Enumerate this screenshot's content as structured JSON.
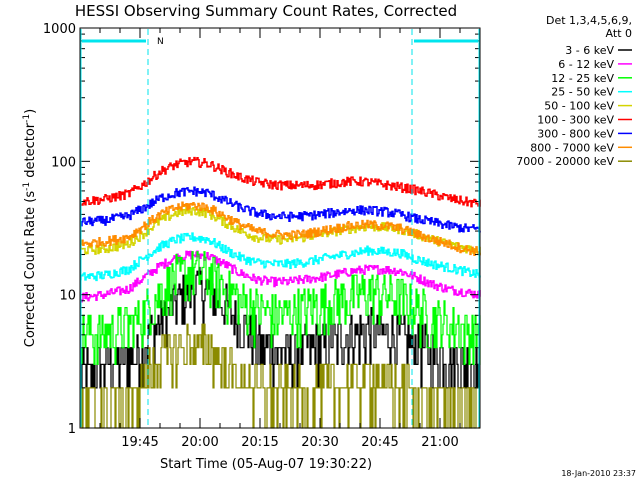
{
  "chart_data": {
    "type": "line",
    "title": "HESSI Observing Summary Count Rates, Corrected",
    "xlabel": "Start Time (05-Aug-07 19:30:22)",
    "ylabel_main": "Corrected Count Rate (s",
    "ylabel_sup1": "-1",
    "ylabel_mid": " detector",
    "ylabel_sup2": "-1",
    "ylabel_end": ")",
    "yscale": "log",
    "ylim": [
      1,
      1000
    ],
    "xlim_minutes": [
      0,
      100
    ],
    "yticks": [
      {
        "v": 1,
        "label": "1"
      },
      {
        "v": 10,
        "label": "10"
      },
      {
        "v": 100,
        "label": "100"
      },
      {
        "v": 1000,
        "label": "1000"
      }
    ],
    "xticks": [
      {
        "m": 15,
        "label": "19:45"
      },
      {
        "m": 30,
        "label": "20:00"
      },
      {
        "m": 45,
        "label": "20:15"
      },
      {
        "m": 60,
        "label": "20:30"
      },
      {
        "m": 75,
        "label": "20:45"
      },
      {
        "m": 90,
        "label": "21:00"
      }
    ],
    "legend_header": [
      "Det 1,3,4,5,6,9,",
      "Att 0"
    ],
    "footer_date": "18-Jan-2010 23:37",
    "night_label": "N",
    "night_color": "#00e5ee",
    "night_intervals": [
      [
        0,
        17
      ],
      [
        83,
        100
      ]
    ],
    "series": [
      {
        "name": "3 - 6 keV",
        "color": "#000000",
        "points": [
          [
            0,
            2.5
          ],
          [
            6,
            2.9
          ],
          [
            12,
            3.3
          ],
          [
            16,
            4.3
          ],
          [
            20,
            6.0
          ],
          [
            24,
            9.0
          ],
          [
            28,
            11.5
          ],
          [
            32,
            11.0
          ],
          [
            36,
            8.5
          ],
          [
            40,
            6.0
          ],
          [
            44,
            4.5
          ],
          [
            48,
            3.8
          ],
          [
            52,
            3.7
          ],
          [
            56,
            3.9
          ],
          [
            60,
            4.2
          ],
          [
            64,
            4.6
          ],
          [
            68,
            5.0
          ],
          [
            72,
            5.3
          ],
          [
            76,
            5.2
          ],
          [
            80,
            5.0
          ],
          [
            84,
            4.3
          ],
          [
            88,
            3.6
          ],
          [
            92,
            3.3
          ],
          [
            96,
            3.0
          ],
          [
            100,
            2.8
          ]
        ]
      },
      {
        "name": "6 - 12 keV",
        "color": "#ff00ff",
        "points": [
          [
            0,
            9.5
          ],
          [
            6,
            10.0
          ],
          [
            12,
            11.0
          ],
          [
            16,
            13.5
          ],
          [
            20,
            16.5
          ],
          [
            24,
            19.0
          ],
          [
            28,
            20.0
          ],
          [
            32,
            19.5
          ],
          [
            36,
            17.0
          ],
          [
            40,
            14.5
          ],
          [
            44,
            13.0
          ],
          [
            48,
            12.5
          ],
          [
            52,
            12.5
          ],
          [
            56,
            13.0
          ],
          [
            60,
            13.5
          ],
          [
            64,
            14.2
          ],
          [
            68,
            15.0
          ],
          [
            72,
            15.5
          ],
          [
            76,
            15.5
          ],
          [
            80,
            15.0
          ],
          [
            84,
            13.5
          ],
          [
            88,
            12.0
          ],
          [
            92,
            11.0
          ],
          [
            96,
            10.5
          ],
          [
            100,
            10.0
          ]
        ]
      },
      {
        "name": "12 - 25 keV",
        "color": "#00ff00",
        "points": [
          [
            0,
            5.0
          ],
          [
            6,
            5.2
          ],
          [
            12,
            5.8
          ],
          [
            16,
            7.5
          ],
          [
            20,
            10.5
          ],
          [
            24,
            13.5
          ],
          [
            28,
            15.0
          ],
          [
            32,
            14.5
          ],
          [
            36,
            11.5
          ],
          [
            40,
            9.0
          ],
          [
            44,
            7.8
          ],
          [
            48,
            7.2
          ],
          [
            52,
            7.3
          ],
          [
            56,
            7.8
          ],
          [
            60,
            8.5
          ],
          [
            64,
            9.2
          ],
          [
            68,
            10.0
          ],
          [
            72,
            10.5
          ],
          [
            76,
            10.2
          ],
          [
            80,
            9.5
          ],
          [
            84,
            8.0
          ],
          [
            88,
            6.8
          ],
          [
            92,
            6.0
          ],
          [
            96,
            5.5
          ],
          [
            100,
            5.0
          ]
        ]
      },
      {
        "name": "25 - 50 keV",
        "color": "#00ffff",
        "points": [
          [
            0,
            13.5
          ],
          [
            6,
            14.0
          ],
          [
            12,
            15.5
          ],
          [
            16,
            19.0
          ],
          [
            20,
            23.0
          ],
          [
            24,
            26.0
          ],
          [
            28,
            27.0
          ],
          [
            32,
            26.0
          ],
          [
            36,
            22.0
          ],
          [
            40,
            19.0
          ],
          [
            44,
            17.5
          ],
          [
            48,
            17.0
          ],
          [
            52,
            17.0
          ],
          [
            56,
            17.5
          ],
          [
            60,
            18.5
          ],
          [
            64,
            19.5
          ],
          [
            68,
            20.5
          ],
          [
            72,
            21.5
          ],
          [
            76,
            21.0
          ],
          [
            80,
            20.5
          ],
          [
            84,
            18.5
          ],
          [
            88,
            17.0
          ],
          [
            92,
            16.0
          ],
          [
            96,
            15.0
          ],
          [
            100,
            14.0
          ]
        ]
      },
      {
        "name": "50 - 100 keV",
        "color": "#d4d400",
        "points": [
          [
            0,
            21.5
          ],
          [
            6,
            22.0
          ],
          [
            12,
            24.0
          ],
          [
            16,
            29.0
          ],
          [
            20,
            36.0
          ],
          [
            24,
            41.0
          ],
          [
            28,
            43.0
          ],
          [
            32,
            41.0
          ],
          [
            36,
            35.0
          ],
          [
            40,
            30.0
          ],
          [
            44,
            27.0
          ],
          [
            48,
            26.0
          ],
          [
            52,
            26.0
          ],
          [
            56,
            27.0
          ],
          [
            60,
            28.5
          ],
          [
            64,
            30.0
          ],
          [
            68,
            31.5
          ],
          [
            72,
            32.5
          ],
          [
            76,
            32.0
          ],
          [
            80,
            31.0
          ],
          [
            84,
            28.5
          ],
          [
            88,
            26.0
          ],
          [
            92,
            24.0
          ],
          [
            96,
            22.5
          ],
          [
            100,
            21.5
          ]
        ]
      },
      {
        "name": "100 - 300 keV",
        "color": "#ff0000",
        "points": [
          [
            0,
            50.0
          ],
          [
            6,
            52.0
          ],
          [
            12,
            57.0
          ],
          [
            16,
            68.0
          ],
          [
            20,
            84.0
          ],
          [
            24,
            95.0
          ],
          [
            28,
            100.0
          ],
          [
            32,
            96.0
          ],
          [
            36,
            85.0
          ],
          [
            40,
            76.0
          ],
          [
            44,
            70.0
          ],
          [
            48,
            67.0
          ],
          [
            52,
            66.0
          ],
          [
            56,
            66.0
          ],
          [
            60,
            67.0
          ],
          [
            64,
            69.0
          ],
          [
            68,
            71.0
          ],
          [
            72,
            70.0
          ],
          [
            76,
            67.0
          ],
          [
            80,
            64.0
          ],
          [
            84,
            61.0
          ],
          [
            88,
            57.0
          ],
          [
            92,
            53.0
          ],
          [
            96,
            50.0
          ],
          [
            100,
            48.0
          ]
        ]
      },
      {
        "name": "300 - 800 keV",
        "color": "#0000ff",
        "points": [
          [
            0,
            35.0
          ],
          [
            6,
            36.0
          ],
          [
            12,
            39.0
          ],
          [
            16,
            45.0
          ],
          [
            20,
            53.0
          ],
          [
            24,
            58.0
          ],
          [
            28,
            60.0
          ],
          [
            32,
            58.0
          ],
          [
            36,
            51.0
          ],
          [
            40,
            45.0
          ],
          [
            44,
            41.0
          ],
          [
            48,
            39.0
          ],
          [
            52,
            38.5
          ],
          [
            56,
            39.0
          ],
          [
            60,
            40.0
          ],
          [
            64,
            41.5
          ],
          [
            68,
            43.0
          ],
          [
            72,
            43.0
          ],
          [
            76,
            42.0
          ],
          [
            80,
            40.0
          ],
          [
            84,
            37.0
          ],
          [
            88,
            35.0
          ],
          [
            92,
            33.0
          ],
          [
            96,
            31.5
          ],
          [
            100,
            31.0
          ]
        ]
      },
      {
        "name": "800 - 7000 keV",
        "color": "#ff8c00",
        "points": [
          [
            0,
            24.0
          ],
          [
            6,
            25.0
          ],
          [
            12,
            27.0
          ],
          [
            16,
            33.0
          ],
          [
            20,
            40.0
          ],
          [
            24,
            45.0
          ],
          [
            28,
            47.0
          ],
          [
            32,
            45.0
          ],
          [
            36,
            39.0
          ],
          [
            40,
            33.5
          ],
          [
            44,
            30.0
          ],
          [
            48,
            28.5
          ],
          [
            52,
            28.0
          ],
          [
            56,
            28.5
          ],
          [
            60,
            30.0
          ],
          [
            64,
            31.5
          ],
          [
            68,
            33.0
          ],
          [
            72,
            33.5
          ],
          [
            76,
            33.0
          ],
          [
            80,
            31.5
          ],
          [
            84,
            28.5
          ],
          [
            88,
            26.0
          ],
          [
            92,
            24.0
          ],
          [
            96,
            22.0
          ],
          [
            100,
            21.0
          ]
        ]
      },
      {
        "name": "7000 - 20000 keV",
        "color": "#8b8b00",
        "points": [
          [
            0,
            1.5
          ],
          [
            12,
            1.6
          ],
          [
            16,
            2.4
          ],
          [
            20,
            3.3
          ],
          [
            24,
            4.0
          ],
          [
            28,
            4.2
          ],
          [
            32,
            4.0
          ],
          [
            36,
            3.0
          ],
          [
            40,
            2.4
          ],
          [
            44,
            2.0
          ],
          [
            48,
            1.9
          ],
          [
            52,
            1.8
          ],
          [
            56,
            1.8
          ],
          [
            60,
            2.0
          ],
          [
            64,
            2.1
          ],
          [
            68,
            2.3
          ],
          [
            72,
            2.3
          ],
          [
            76,
            2.2
          ],
          [
            80,
            2.0
          ],
          [
            84,
            1.8
          ],
          [
            88,
            1.6
          ],
          [
            100,
            1.5
          ]
        ]
      }
    ]
  }
}
